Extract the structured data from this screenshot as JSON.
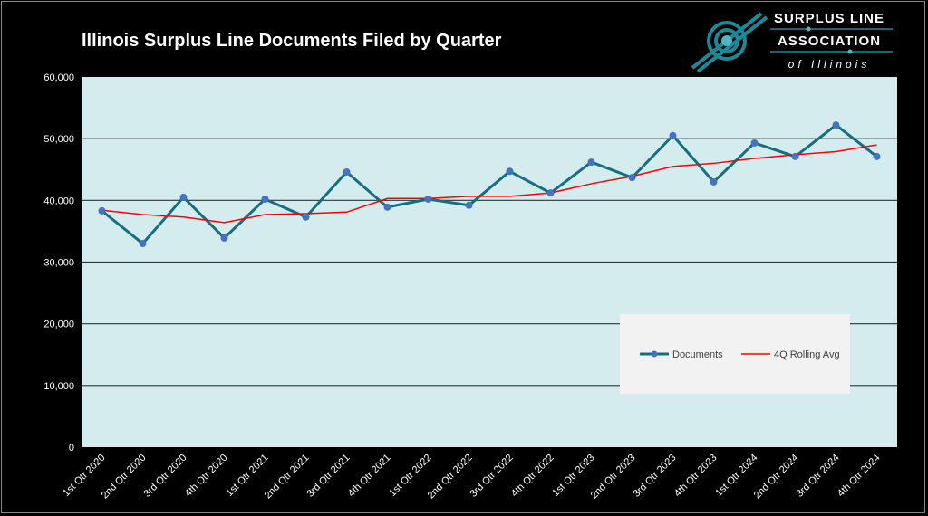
{
  "chart_data": {
    "type": "line",
    "title": "Illinois Surplus Line Documents Filed by Quarter",
    "categories": [
      "1st Qtr 2020",
      "2nd Qtr 2020",
      "3rd Qtr 2020",
      "4th Qtr 2020",
      "1st Qtr 2021",
      "2nd Qtr 2021",
      "3rd Qtr 2021",
      "4th Qtr 2021",
      "1st Qtr 2022",
      "2nd Qtr 2022",
      "3rd Qtr 2022",
      "4th Qtr 2022",
      "1st Qtr 2023",
      "2nd Qtr 2023",
      "3rd Qtr 2023",
      "4th Qtr 2023",
      "1st Qtr 2024",
      "2nd Qtr 2024",
      "3rd Qtr 2024",
      "4th Qtr 2024"
    ],
    "series": [
      {
        "name": "Documents",
        "color": "#156f80",
        "marker_color": "#4472c4",
        "values": [
          38300,
          33000,
          40500,
          33900,
          40200,
          37300,
          44600,
          38900,
          40200,
          39200,
          44700,
          41200,
          46200,
          43700,
          50500,
          43000,
          49300,
          47100,
          52200,
          47100
        ]
      },
      {
        "name": "4Q Rolling Avg",
        "color": "#ff0000",
        "values": [
          38400,
          37700,
          37300,
          36400,
          37700,
          37850,
          38100,
          40300,
          40300,
          40650,
          40650,
          41200,
          42700,
          43900,
          45500,
          46000,
          46800,
          47400,
          47900,
          49000
        ]
      }
    ],
    "ylim": [
      0,
      60000
    ],
    "yticks": [
      "0",
      "10,000",
      "20,000",
      "30,000",
      "40,000",
      "50,000",
      "60,000"
    ],
    "grid": "horizontal",
    "legend_placement": "lower-right",
    "plot_background": "#d4ecee"
  },
  "logo": {
    "line1": "SURPLUS LINE",
    "line2": "ASSOCIATION",
    "line3": "of Illinois"
  }
}
